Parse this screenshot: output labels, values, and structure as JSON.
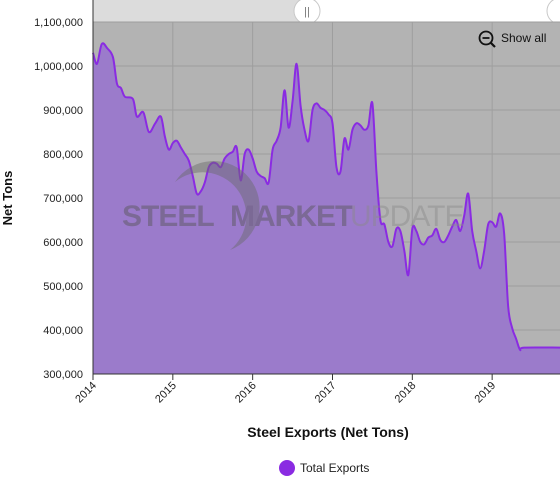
{
  "chart_data": {
    "type": "area",
    "title": "",
    "xlabel": "Steel Exports (Net Tons)",
    "ylabel": "Net Tons",
    "ylim": [
      300000,
      1100000
    ],
    "yticks": [
      300000,
      400000,
      500000,
      600000,
      700000,
      800000,
      900000,
      1000000,
      1100000
    ],
    "ytick_labels": [
      "300,000",
      "400,000",
      "500,000",
      "600,000",
      "700,000",
      "800,000",
      "900,000",
      "1,000,000",
      "1,100,000"
    ],
    "xlim": [
      2014.0,
      2019.85
    ],
    "xticks": [
      2014,
      2015,
      2016,
      2017,
      2018,
      2019
    ],
    "xtick_labels": [
      "2014",
      "2015",
      "2016",
      "2017",
      "2018",
      "2019"
    ],
    "grid": true,
    "legend_position": "bottom-center",
    "series": [
      {
        "name": "Total Exports",
        "color": "#9b7bcb",
        "line_color": "#8a2be2",
        "points": [
          [
            2014.0,
            1030000
          ],
          [
            2014.05,
            1005000
          ],
          [
            2014.11,
            1050000
          ],
          [
            2014.18,
            1040000
          ],
          [
            2014.25,
            1020000
          ],
          [
            2014.3,
            960000
          ],
          [
            2014.35,
            950000
          ],
          [
            2014.4,
            930000
          ],
          [
            2014.5,
            925000
          ],
          [
            2014.55,
            885000
          ],
          [
            2014.63,
            895000
          ],
          [
            2014.7,
            850000
          ],
          [
            2014.78,
            870000
          ],
          [
            2014.85,
            885000
          ],
          [
            2014.9,
            840000
          ],
          [
            2014.95,
            810000
          ],
          [
            2015.0,
            825000
          ],
          [
            2015.05,
            830000
          ],
          [
            2015.1,
            815000
          ],
          [
            2015.15,
            800000
          ],
          [
            2015.2,
            785000
          ],
          [
            2015.25,
            750000
          ],
          [
            2015.3,
            710000
          ],
          [
            2015.35,
            715000
          ],
          [
            2015.4,
            735000
          ],
          [
            2015.45,
            770000
          ],
          [
            2015.5,
            780000
          ],
          [
            2015.55,
            778000
          ],
          [
            2015.6,
            770000
          ],
          [
            2015.65,
            790000
          ],
          [
            2015.7,
            800000
          ],
          [
            2015.75,
            805000
          ],
          [
            2015.8,
            815000
          ],
          [
            2015.85,
            740000
          ],
          [
            2015.9,
            800000
          ],
          [
            2015.95,
            810000
          ],
          [
            2016.0,
            790000
          ],
          [
            2016.05,
            760000
          ],
          [
            2016.1,
            750000
          ],
          [
            2016.15,
            745000
          ],
          [
            2016.2,
            735000
          ],
          [
            2016.25,
            810000
          ],
          [
            2016.3,
            830000
          ],
          [
            2016.35,
            860000
          ],
          [
            2016.4,
            945000
          ],
          [
            2016.45,
            860000
          ],
          [
            2016.5,
            920000
          ],
          [
            2016.55,
            1005000
          ],
          [
            2016.6,
            910000
          ],
          [
            2016.65,
            855000
          ],
          [
            2016.7,
            830000
          ],
          [
            2016.75,
            900000
          ],
          [
            2016.8,
            915000
          ],
          [
            2016.85,
            905000
          ],
          [
            2016.9,
            900000
          ],
          [
            2016.95,
            890000
          ],
          [
            2017.0,
            870000
          ],
          [
            2017.05,
            770000
          ],
          [
            2017.1,
            760000
          ],
          [
            2017.15,
            835000
          ],
          [
            2017.2,
            810000
          ],
          [
            2017.25,
            855000
          ],
          [
            2017.3,
            870000
          ],
          [
            2017.35,
            865000
          ],
          [
            2017.4,
            855000
          ],
          [
            2017.45,
            865000
          ],
          [
            2017.5,
            915000
          ],
          [
            2017.55,
            760000
          ],
          [
            2017.6,
            650000
          ],
          [
            2017.65,
            640000
          ],
          [
            2017.7,
            600000
          ],
          [
            2017.75,
            590000
          ],
          [
            2017.8,
            630000
          ],
          [
            2017.85,
            625000
          ],
          [
            2017.9,
            580000
          ],
          [
            2017.95,
            525000
          ],
          [
            2018.0,
            630000
          ],
          [
            2018.05,
            625000
          ],
          [
            2018.1,
            600000
          ],
          [
            2018.15,
            595000
          ],
          [
            2018.2,
            610000
          ],
          [
            2018.25,
            615000
          ],
          [
            2018.3,
            630000
          ],
          [
            2018.35,
            605000
          ],
          [
            2018.4,
            600000
          ],
          [
            2018.45,
            615000
          ],
          [
            2018.5,
            635000
          ],
          [
            2018.55,
            650000
          ],
          [
            2018.6,
            625000
          ],
          [
            2018.65,
            660000
          ],
          [
            2018.7,
            710000
          ],
          [
            2018.75,
            625000
          ],
          [
            2018.8,
            580000
          ],
          [
            2018.85,
            540000
          ],
          [
            2018.9,
            580000
          ],
          [
            2018.95,
            640000
          ],
          [
            2019.0,
            645000
          ],
          [
            2019.05,
            635000
          ],
          [
            2019.1,
            665000
          ],
          [
            2019.15,
            620000
          ],
          [
            2019.2,
            455000
          ],
          [
            2019.25,
            405000
          ],
          [
            2019.3,
            380000
          ],
          [
            2019.35,
            355000
          ],
          [
            2019.4,
            360000
          ],
          [
            2019.85,
            360000
          ]
        ]
      }
    ]
  },
  "navigator": {
    "handle_glyph": "||"
  },
  "zoom": {
    "icon": "zoom-out-icon",
    "label": "Show all"
  },
  "watermark": {
    "part1": "STEEL",
    "part2": "MARKET",
    "part3": "UPDATE"
  },
  "colors": {
    "plot_bg": "#b3b3b3",
    "area_fill": "#9b7bcb",
    "line": "#8a2be2",
    "legend_marker": "#8a2be2",
    "navigator_bg": "#dcdcdc"
  }
}
